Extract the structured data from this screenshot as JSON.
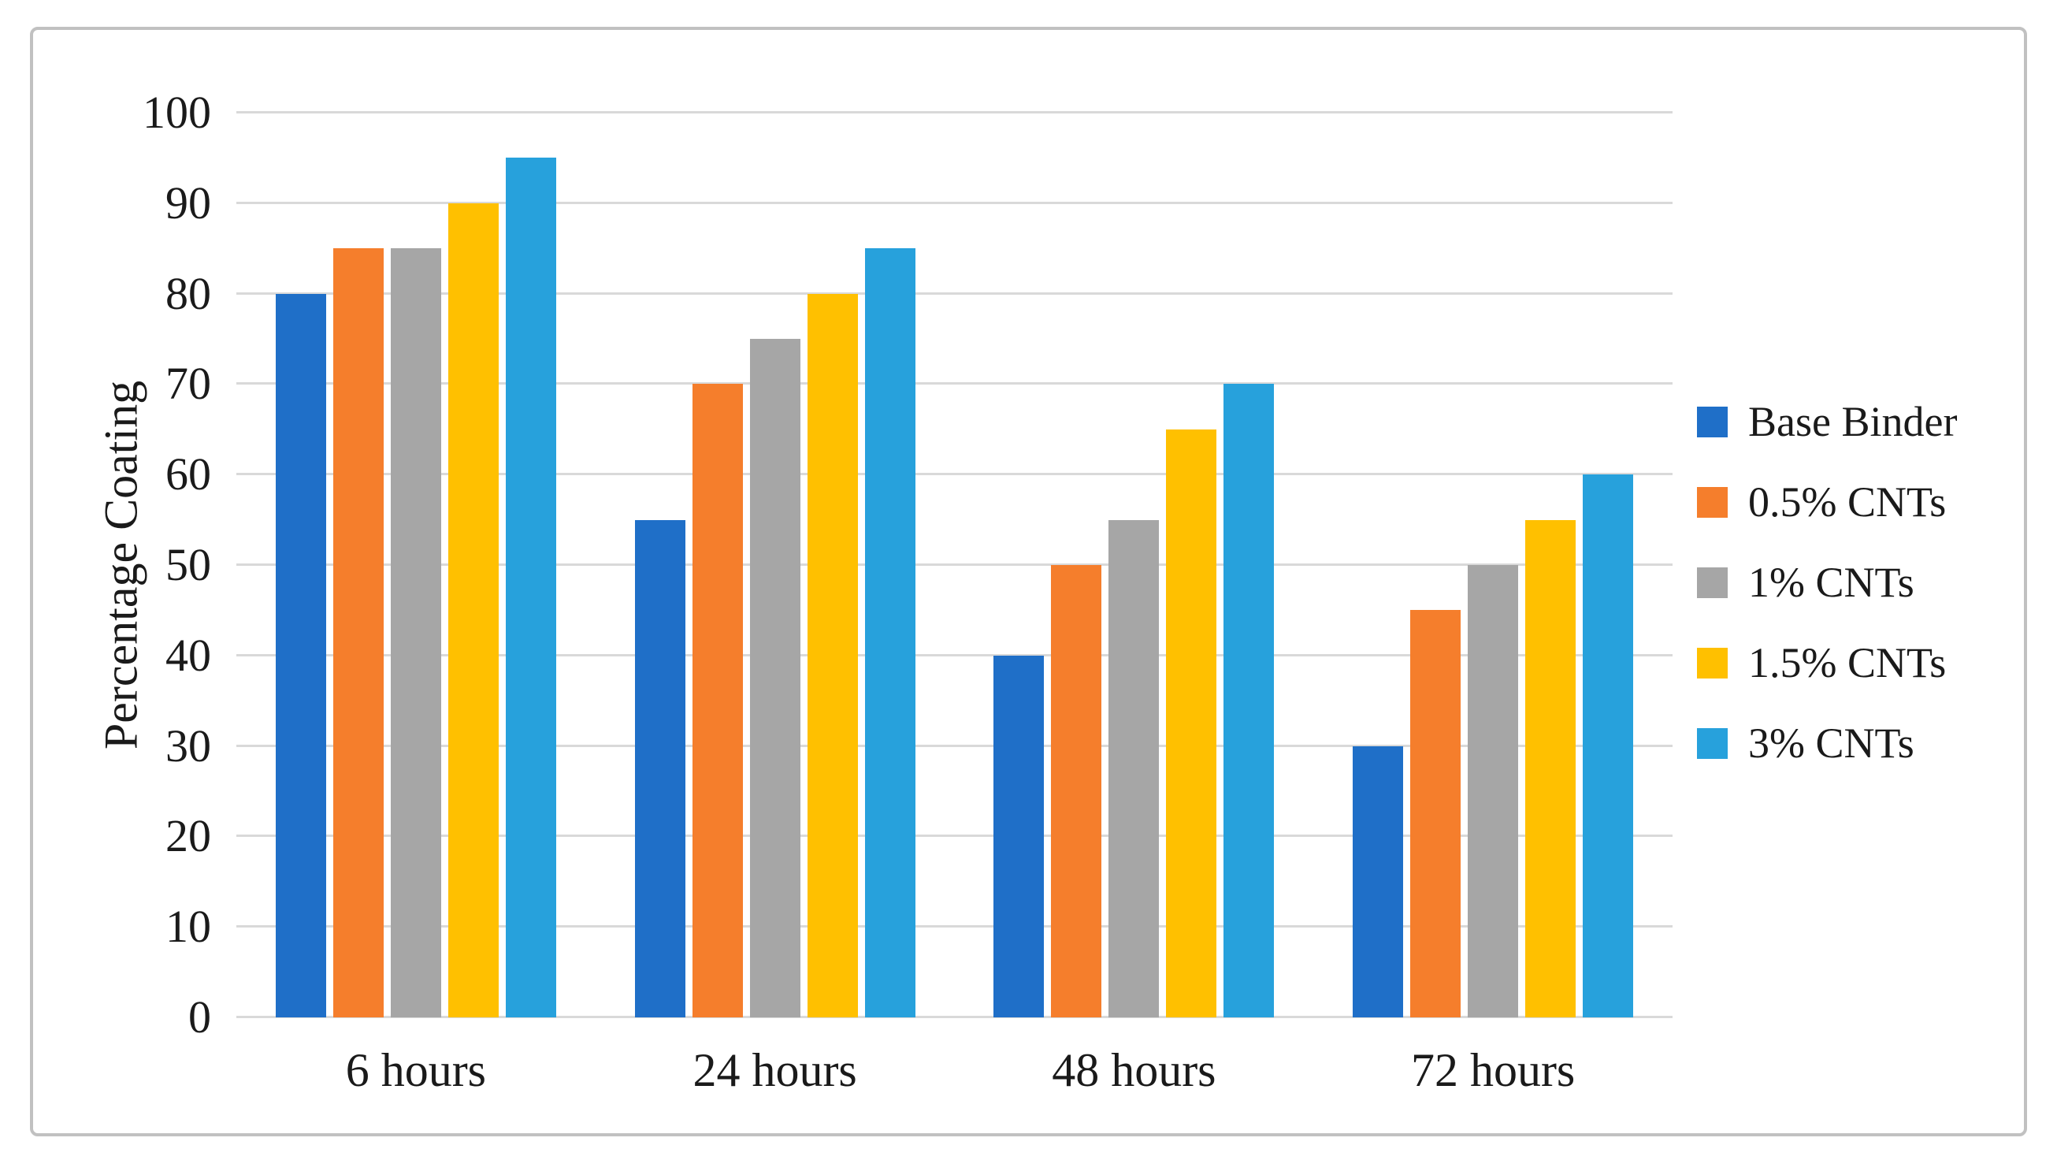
{
  "chart_data": {
    "type": "bar",
    "title": "",
    "categories": [
      "6 hours",
      "24 hours",
      "48 hours",
      "72 hours"
    ],
    "series": [
      {
        "name": "Base Binder",
        "color": "#1F6FC8",
        "values": [
          80,
          55,
          40,
          30
        ]
      },
      {
        "name": "0.5% CNTs",
        "color": "#F57E2C",
        "values": [
          85,
          70,
          50,
          45
        ]
      },
      {
        "name": "1% CNTs",
        "color": "#A6A6A6",
        "values": [
          85,
          75,
          55,
          50
        ]
      },
      {
        "name": "1.5% CNTs",
        "color": "#FFC000",
        "values": [
          90,
          80,
          65,
          55
        ]
      },
      {
        "name": "3% CNTs",
        "color": "#27A1DC",
        "values": [
          95,
          85,
          70,
          60
        ]
      }
    ],
    "xlabel": "",
    "ylabel": "Percentage Coating",
    "ylim": [
      0,
      100
    ],
    "yticks": [
      0,
      10,
      20,
      30,
      40,
      50,
      60,
      70,
      80,
      90,
      100
    ],
    "grid": true,
    "legend_position": "right",
    "gridline_color": "#d9d9d9",
    "frame_border_color": "#c1c1c1",
    "text_color": "#1a1a1a",
    "background_color": "#ffffff"
  }
}
